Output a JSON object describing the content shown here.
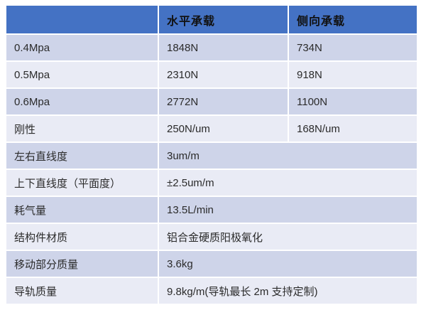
{
  "table": {
    "header": {
      "empty": "",
      "horizontal_load": "水平承载",
      "lateral_load": "侧向承载"
    },
    "rows": [
      {
        "label": "0.4Mpa",
        "horizontal": "1848N",
        "lateral": "734N",
        "span": false
      },
      {
        "label": "0.5Mpa",
        "horizontal": "2310N",
        "lateral": "918N",
        "span": false
      },
      {
        "label": "0.6Mpa",
        "horizontal": "2772N",
        "lateral": "1100N",
        "span": false
      },
      {
        "label": "刚性",
        "horizontal": "250N/um",
        "lateral": "168N/um",
        "span": false
      },
      {
        "label": "左右直线度",
        "value": "3um/m",
        "span": true
      },
      {
        "label": "上下直线度（平面度）",
        "value": "±2.5um/m",
        "span": true
      },
      {
        "label": "耗气量",
        "value": "13.5L/min",
        "span": true
      },
      {
        "label": "结构件材质",
        "value": "铝合金硬质阳极氧化",
        "span": true
      },
      {
        "label": "移动部分质量",
        "value": "3.6kg",
        "span": true
      },
      {
        "label": "导轨质量",
        "value": "9.8kg/m(导轨最长 2m 支持定制)",
        "span": true
      }
    ],
    "colors": {
      "header_bg": "#4472C4",
      "header_text": "#111111",
      "row_odd_bg": "#CED4E9",
      "row_even_bg": "#E9EBF5",
      "body_text": "#2B2B2B",
      "page_bg": "#FFFFFF"
    }
  }
}
